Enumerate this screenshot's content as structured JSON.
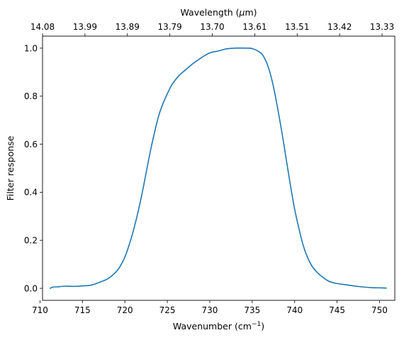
{
  "chart_data": {
    "type": "line",
    "title": "",
    "xlabel_main": "Wavenumber (cm",
    "xlabel_sup": "−1",
    "xlabel_close": ")",
    "x2label_pre": "Wavelength (",
    "x2label_mu": "μ",
    "x2label_post": "m)",
    "ylabel": "Filter response",
    "xlim": [
      710.3,
      751.8
    ],
    "ylim": [
      -0.05,
      1.05
    ],
    "x_ticks": [
      710,
      715,
      720,
      725,
      730,
      735,
      740,
      745,
      750
    ],
    "x_tick_labels": [
      "710",
      "715",
      "720",
      "725",
      "730",
      "735",
      "740",
      "745",
      "750"
    ],
    "y_ticks": [
      0.0,
      0.2,
      0.4,
      0.6,
      0.8,
      1.0
    ],
    "y_tick_labels": [
      "0.0",
      "0.2",
      "0.4",
      "0.6",
      "0.8",
      "1.0"
    ],
    "top_ticks": [
      710.3,
      715.3,
      720.3,
      725.3,
      730.3,
      735.3,
      740.3,
      745.3,
      750.3
    ],
    "top_tick_labels": [
      "14.08",
      "13.99",
      "13.89",
      "13.79",
      "13.70",
      "13.61",
      "13.51",
      "13.42",
      "13.33"
    ],
    "grid": false,
    "legend": "none",
    "line_color": "#1f77b4",
    "series": [
      {
        "x": [
          711.2,
          711.5,
          712.0,
          713.0,
          714.0,
          715.0,
          716.0,
          717.0,
          718.0,
          719.0,
          719.5,
          720.0,
          720.5,
          721.0,
          721.5,
          722.0,
          722.5,
          723.0,
          723.5,
          724.0,
          724.5,
          725.0,
          725.5,
          726.0,
          726.5,
          727.0,
          728.0,
          729.0,
          730.0,
          731.0,
          732.0,
          733.0,
          734.0,
          735.0,
          736.0,
          736.5,
          737.0,
          737.5,
          738.0,
          738.5,
          739.0,
          739.5,
          740.0,
          740.5,
          741.0,
          741.5,
          742.0,
          742.5,
          743.0,
          744.0,
          745.0,
          746.0,
          747.0,
          748.0,
          749.0,
          750.0,
          750.8
        ],
        "y": [
          0.0,
          0.005,
          0.006,
          0.009,
          0.008,
          0.01,
          0.013,
          0.025,
          0.04,
          0.07,
          0.095,
          0.13,
          0.18,
          0.24,
          0.31,
          0.39,
          0.48,
          0.57,
          0.65,
          0.72,
          0.77,
          0.81,
          0.845,
          0.87,
          0.89,
          0.905,
          0.935,
          0.96,
          0.98,
          0.988,
          0.997,
          1.0,
          1.0,
          0.998,
          0.98,
          0.955,
          0.91,
          0.84,
          0.75,
          0.65,
          0.54,
          0.43,
          0.33,
          0.25,
          0.18,
          0.13,
          0.095,
          0.072,
          0.055,
          0.03,
          0.02,
          0.015,
          0.01,
          0.006,
          0.003,
          0.002,
          0.001
        ]
      }
    ]
  }
}
